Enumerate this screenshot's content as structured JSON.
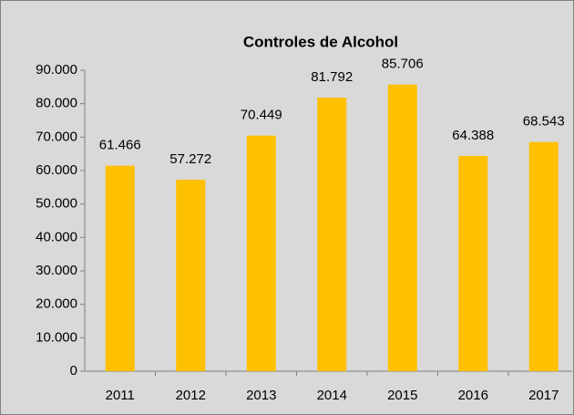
{
  "chart_data": {
    "type": "bar",
    "title": "Controles de Alcohol",
    "categories": [
      "2011",
      "2012",
      "2013",
      "2014",
      "2015",
      "2016",
      "2017"
    ],
    "values": [
      61466,
      57272,
      70449,
      81792,
      85706,
      64388,
      68543
    ],
    "value_labels": [
      "61.466",
      "57.272",
      "70.449",
      "81.792",
      "85.706",
      "64.388",
      "68.543"
    ],
    "color": "#ffc000",
    "ylim": [
      0,
      90000
    ],
    "yticks": [
      0,
      {
        "value": 10000,
        "label": "10.000"
      },
      {
        "value": 20000,
        "label": "20.000"
      },
      {
        "value": 30000,
        "label": "30.000"
      },
      {
        "value": 40000,
        "label": "40.000"
      },
      {
        "value": 50000,
        "label": "50.000"
      },
      {
        "value": 60000,
        "label": "60.000"
      },
      {
        "value": 70000,
        "label": "70.000"
      },
      {
        "value": 80000,
        "label": "80.000"
      },
      {
        "value": 90000,
        "label": "90.000"
      }
    ],
    "grid": false
  }
}
